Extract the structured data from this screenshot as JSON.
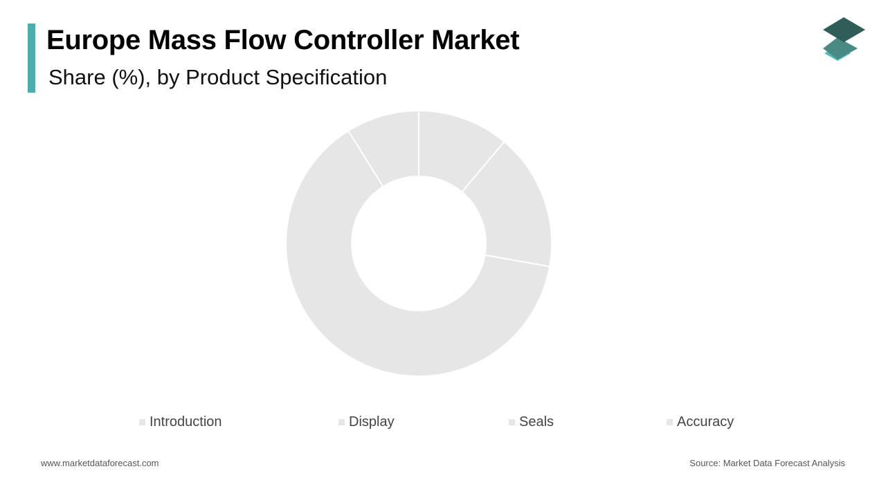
{
  "header": {
    "title": "Europe Mass Flow Controller Market",
    "subtitle": "Share (%), by Product Specification"
  },
  "colors": {
    "accent": "#4aaeae",
    "slice": "#e6e6e6",
    "slice_border": "#ffffff",
    "logo_top": "#2f5d57",
    "logo_middle": "#4a8a85",
    "logo_bottom": "#4bbdb8"
  },
  "logo": {
    "icon": "stacked-layers-icon"
  },
  "chart_data": {
    "type": "pie",
    "donut": true,
    "title": "Europe Mass Flow Controller Market",
    "subtitle": "Share (%), by Product Specification",
    "unit": "%",
    "legend_position": "bottom",
    "categories": [
      "Introduction",
      "Display",
      "Seals",
      "Accuracy"
    ],
    "values": [
      10,
      15,
      57,
      8
    ]
  },
  "footer": {
    "website": "www.marketdataforecast.com",
    "source": "Source: Market Data Forecast Analysis"
  }
}
